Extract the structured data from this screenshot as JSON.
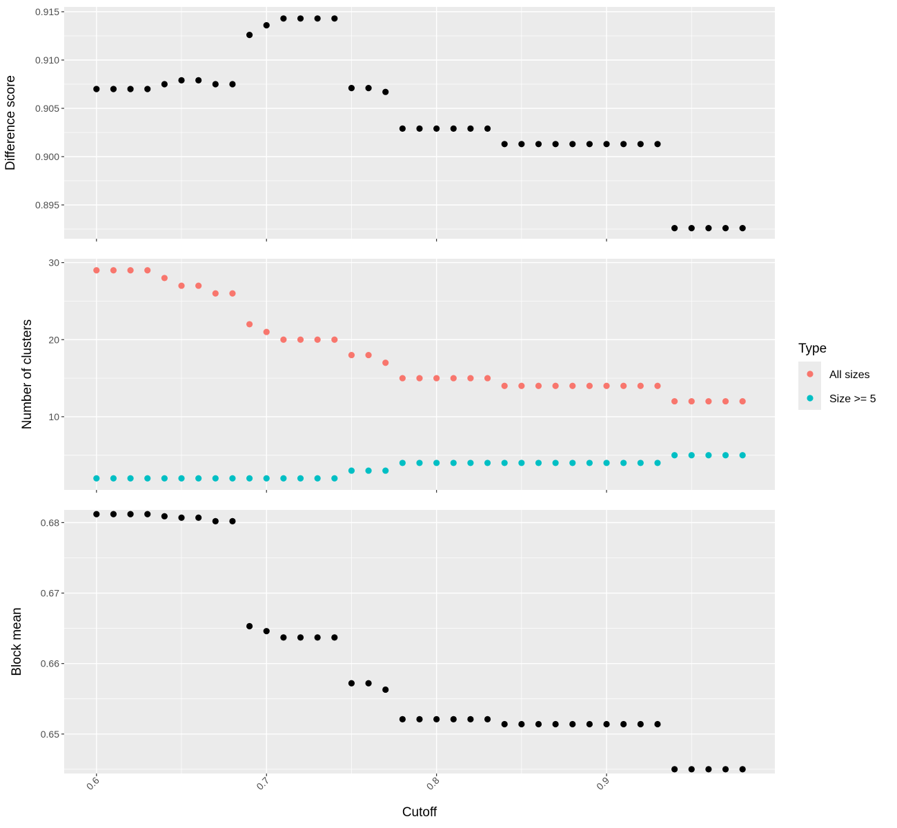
{
  "chart_data": {
    "type": "scatter",
    "x": [
      0.6,
      0.61,
      0.62,
      0.63,
      0.64,
      0.65,
      0.66,
      0.67,
      0.68,
      0.69,
      0.7,
      0.71,
      0.72,
      0.73,
      0.74,
      0.75,
      0.76,
      0.77,
      0.78,
      0.79,
      0.8,
      0.81,
      0.82,
      0.83,
      0.84,
      0.85,
      0.86,
      0.87,
      0.88,
      0.89,
      0.9,
      0.91,
      0.92,
      0.93,
      0.94,
      0.95,
      0.96,
      0.97,
      0.98
    ],
    "xlabel": "Cutoff",
    "xlim": [
      0.581,
      0.999
    ],
    "xticks": [
      0.6,
      0.7,
      0.8,
      0.9
    ],
    "xtick_labels": [
      "0.6",
      "0.7",
      "0.8",
      "0.9"
    ],
    "panels": [
      {
        "ylabel": "Difference score",
        "ylim": [
          0.8915,
          0.9155
        ],
        "yticks": [
          0.895,
          0.9,
          0.905,
          0.91,
          0.915
        ],
        "ytick_labels": [
          "0.895",
          "0.900",
          "0.905",
          "0.910",
          "0.915"
        ],
        "series": [
          {
            "color": "#000000",
            "values": [
              0.907,
              0.907,
              0.907,
              0.907,
              0.9075,
              0.9079,
              0.9079,
              0.9075,
              0.9075,
              0.9126,
              0.9136,
              0.9143,
              0.9143,
              0.9143,
              0.9143,
              0.9071,
              0.9071,
              0.9067,
              0.9029,
              0.9029,
              0.9029,
              0.9029,
              0.9029,
              0.9029,
              0.9013,
              0.9013,
              0.9013,
              0.9013,
              0.9013,
              0.9013,
              0.9013,
              0.9013,
              0.9013,
              0.9013,
              0.8926,
              0.8926,
              0.8926,
              0.8926,
              0.8926
            ]
          }
        ]
      },
      {
        "ylabel": "Number of clusters",
        "ylim": [
          0.5,
          30.5
        ],
        "yticks": [
          10,
          20,
          30
        ],
        "ytick_labels": [
          "10",
          "20",
          "30"
        ],
        "series": [
          {
            "name": "All sizes",
            "color": "#F8766D",
            "values": [
              29,
              29,
              29,
              29,
              28,
              27,
              27,
              26,
              26,
              22,
              21,
              20,
              20,
              20,
              20,
              18,
              18,
              17,
              15,
              15,
              15,
              15,
              15,
              15,
              14,
              14,
              14,
              14,
              14,
              14,
              14,
              14,
              14,
              14,
              12,
              12,
              12,
              12,
              12
            ]
          },
          {
            "name": "Size >= 5",
            "color": "#00BFC4",
            "values": [
              2,
              2,
              2,
              2,
              2,
              2,
              2,
              2,
              2,
              2,
              2,
              2,
              2,
              2,
              2,
              3,
              3,
              3,
              4,
              4,
              4,
              4,
              4,
              4,
              4,
              4,
              4,
              4,
              4,
              4,
              4,
              4,
              4,
              4,
              5,
              5,
              5,
              5,
              5
            ]
          }
        ]
      },
      {
        "ylabel": "Block mean",
        "ylim": [
          0.6444,
          0.6818
        ],
        "yticks": [
          0.65,
          0.66,
          0.67,
          0.68
        ],
        "ytick_labels": [
          "0.65",
          "0.66",
          "0.67",
          "0.68"
        ],
        "series": [
          {
            "color": "#000000",
            "values": [
              0.6812,
              0.6812,
              0.6812,
              0.6812,
              0.6809,
              0.6807,
              0.6807,
              0.6802,
              0.6802,
              0.6653,
              0.6646,
              0.6637,
              0.6637,
              0.6637,
              0.6637,
              0.6572,
              0.6572,
              0.6563,
              0.6521,
              0.6521,
              0.6521,
              0.6521,
              0.6521,
              0.6521,
              0.6514,
              0.6514,
              0.6514,
              0.6514,
              0.6514,
              0.6514,
              0.6514,
              0.6514,
              0.6514,
              0.6514,
              0.645,
              0.645,
              0.645,
              0.645,
              0.645
            ]
          }
        ]
      }
    ],
    "legend": {
      "title": "Type",
      "placement": "right",
      "entries": [
        {
          "label": "All sizes",
          "color": "#F8766D"
        },
        {
          "label": "Size >= 5",
          "color": "#00BFC4"
        }
      ]
    },
    "grid": true
  }
}
